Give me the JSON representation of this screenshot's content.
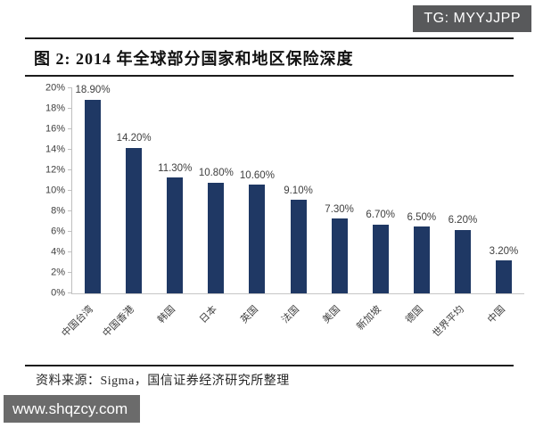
{
  "badge": {
    "text": "TG: MYYJJPP",
    "bg": "#58595b"
  },
  "figure": {
    "title": "图 2: 2014 年全球部分国家和地区保险深度",
    "source": "资料来源：Sigma，国信证券经济研究所整理"
  },
  "watermark": {
    "text": "www.shqzcy.com",
    "bg": "#6b6b6b"
  },
  "chart_data": {
    "type": "bar",
    "title": "2014 年全球部分国家和地区保险深度",
    "categories": [
      "中国台湾",
      "中国香港",
      "韩国",
      "日本",
      "英国",
      "法国",
      "美国",
      "新加坡",
      "德国",
      "世界平均",
      "中国"
    ],
    "values": [
      18.9,
      14.2,
      11.3,
      10.8,
      10.6,
      9.1,
      7.3,
      6.7,
      6.5,
      6.2,
      3.2
    ],
    "value_labels": [
      "18.90%",
      "14.20%",
      "11.30%",
      "10.80%",
      "10.60%",
      "9.10%",
      "7.30%",
      "6.70%",
      "6.50%",
      "6.20%",
      "3.20%"
    ],
    "yticks": [
      "0%",
      "2%",
      "4%",
      "6%",
      "8%",
      "10%",
      "12%",
      "14%",
      "16%",
      "18%",
      "20%"
    ],
    "ylim": [
      0,
      20
    ],
    "ytick_step": 2,
    "xlabel": "",
    "ylabel": "",
    "grid": false,
    "legend": null,
    "bar_color": "#1f3864",
    "axis_color": "#bfbfbf",
    "label_color": "#3f3f3f"
  }
}
